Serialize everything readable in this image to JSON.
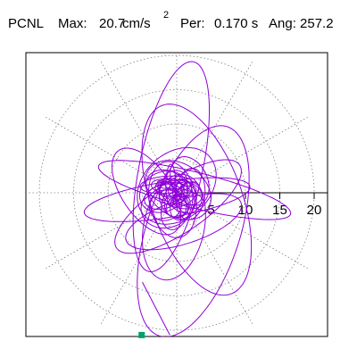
{
  "header": {
    "station": "PCNL",
    "max_label": "Max:",
    "max_value": "20.7",
    "max_unit": "cm/s",
    "max_unit_exp": "2",
    "per_label": "Per:",
    "per_value": "0.170 s",
    "ang_label": "Ang: 257.2"
  },
  "chart_data": {
    "type": "polar-orbit",
    "radial_ticks": [
      5,
      10,
      15,
      20
    ],
    "radial_max": 22,
    "angle_grid_step_deg": 30,
    "grid": true,
    "orbit_color": "#8f00d8",
    "marker_color": "#00a070",
    "orbit_ellipses": [
      {
        "cx": 2.4,
        "cy": -5.6,
        "rx": 16.0,
        "ry": 6.8,
        "rot": 72,
        "t0": 0.0,
        "t1": 1.0
      },
      {
        "cx": -0.8,
        "cy": 3.8,
        "rx": 15.6,
        "ry": 4.6,
        "rot": 78,
        "t0": 0.0,
        "t1": 1.0
      },
      {
        "cx": 2.9,
        "cy": -1.0,
        "rx": 14.6,
        "ry": 6.6,
        "rot": -70,
        "t0": 0.0,
        "t1": 1.0
      },
      {
        "cx": -1.4,
        "cy": -1.0,
        "rx": 12.2,
        "ry": 2.6,
        "rot": 9,
        "t0": 0.0,
        "t1": 1.0
      },
      {
        "cx": 2.6,
        "cy": 0.4,
        "rx": 14.4,
        "ry": 2.6,
        "rot": -14,
        "t0": 0.0,
        "t1": 1.0
      },
      {
        "cx": 0.2,
        "cy": -2.0,
        "rx": 10.8,
        "ry": 3.8,
        "rot": 34,
        "t0": 0.0,
        "t1": 1.0
      },
      {
        "cx": -0.4,
        "cy": -5.0,
        "rx": 4.4,
        "ry": 7.8,
        "rot": -12,
        "t0": 0.0,
        "t1": 1.0
      },
      {
        "cx": 1.0,
        "cy": -4.2,
        "rx": 8.8,
        "ry": 3.2,
        "rot": 18,
        "t0": 0.0,
        "t1": 1.0
      },
      {
        "cx": -4.4,
        "cy": 0.2,
        "rx": 7.2,
        "ry": 3.6,
        "rot": 124,
        "t0": 0.0,
        "t1": 1.0
      },
      {
        "cx": 0.0,
        "cy": 1.0,
        "rx": 6.4,
        "ry": 4.8,
        "rot": 42,
        "t0": 0.0,
        "t1": 1.0
      },
      {
        "cx": 0.2,
        "cy": 0.4,
        "rx": 5.2,
        "ry": 3.8,
        "rot": -35,
        "t0": 0.0,
        "t1": 1.0
      },
      {
        "cx": -0.6,
        "cy": -1.0,
        "rx": 3.4,
        "ry": 5.6,
        "rot": 10,
        "t0": 0.0,
        "t1": 1.0
      }
    ],
    "orbit_extras": [
      {
        "x0": -5.0,
        "y0": -13.0,
        "x1": -1.0,
        "y1": -20.7
      }
    ],
    "end_marker": {
      "x": -5.1,
      "y": -20.7
    }
  }
}
